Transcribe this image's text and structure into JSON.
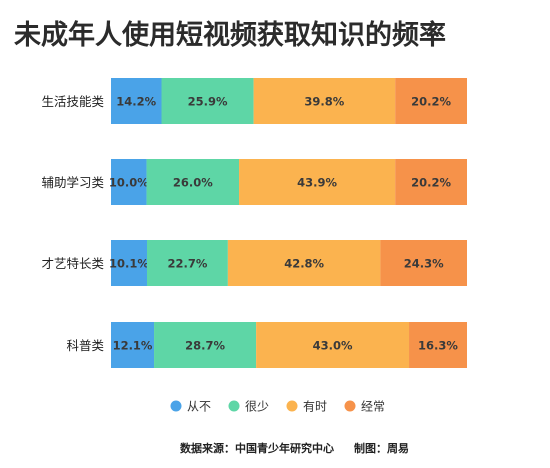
{
  "chart_data": {
    "type": "bar",
    "orientation": "horizontal",
    "stacked": true,
    "title": "未成年人使用短视频获取知识的频率",
    "categories": [
      "生活技能类",
      "辅助学习类",
      "才艺特长类",
      "科普类"
    ],
    "series": [
      {
        "name": "从不",
        "color": "#4aa3e8",
        "values": [
          14.2,
          10.0,
          10.1,
          12.1
        ],
        "labels": [
          "14.2%",
          "10.0%",
          "10.1%",
          "12.1%"
        ]
      },
      {
        "name": "很少",
        "color": "#5ed6a6",
        "values": [
          25.9,
          26.0,
          22.7,
          28.7
        ],
        "labels": [
          "25.9%",
          "26.0%",
          "22.7%",
          "28.7%"
        ]
      },
      {
        "name": "有时",
        "color": "#fbb34f",
        "values": [
          39.8,
          43.9,
          42.8,
          43.0
        ],
        "labels": [
          "39.8%",
          "43.9%",
          "42.8%",
          "43.0%"
        ]
      },
      {
        "name": "经常",
        "color": "#f6924a",
        "values": [
          20.2,
          20.2,
          24.3,
          16.3
        ],
        "labels": [
          "20.2%",
          "20.2%",
          "24.3%",
          "16.3%"
        ]
      }
    ],
    "xlim": [
      0,
      100
    ],
    "legend_position": "bottom",
    "grid": false
  },
  "footer": {
    "source": "数据来源：中国青少年研究中心",
    "credit": "制图：周易"
  }
}
